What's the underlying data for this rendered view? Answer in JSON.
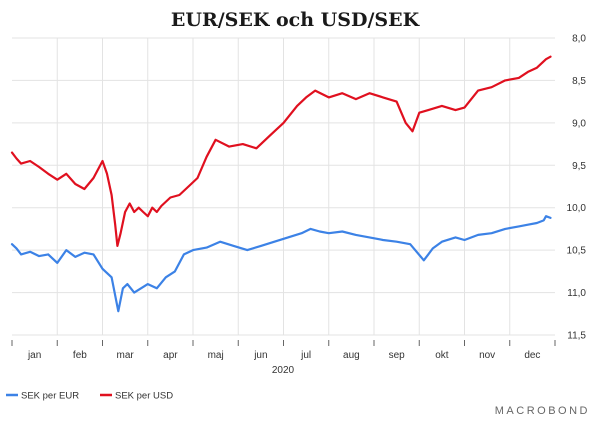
{
  "chart_data": {
    "type": "line",
    "title": "EUR/SEK och USD/SEK",
    "xlabel": "2020",
    "months": [
      "jan",
      "feb",
      "mar",
      "apr",
      "maj",
      "jun",
      "jul",
      "aug",
      "sep",
      "okt",
      "nov",
      "dec"
    ],
    "x_range": [
      0,
      12
    ],
    "ylim": [
      8.0,
      11.5
    ],
    "y_inverted": true,
    "y_axis_side": "right",
    "y_ticks": [
      "8,0",
      "8,5",
      "9,0",
      "9,5",
      "10,0",
      "10,5",
      "11,0",
      "11,5"
    ],
    "grid": true,
    "legend_position": "bottom-left",
    "series": [
      {
        "name": "SEK per EUR",
        "color": "#3c82e6",
        "x": [
          0.0,
          0.1,
          0.2,
          0.4,
          0.6,
          0.8,
          1.0,
          1.2,
          1.4,
          1.6,
          1.8,
          2.0,
          2.2,
          2.35,
          2.45,
          2.55,
          2.7,
          2.85,
          3.0,
          3.2,
          3.4,
          3.6,
          3.8,
          4.0,
          4.3,
          4.6,
          4.9,
          5.2,
          5.5,
          5.8,
          6.1,
          6.4,
          6.6,
          6.8,
          7.0,
          7.3,
          7.6,
          7.9,
          8.2,
          8.5,
          8.8,
          9.1,
          9.2,
          9.3,
          9.5,
          9.8,
          10.0,
          10.3,
          10.6,
          10.9,
          11.2,
          11.4,
          11.6,
          11.75,
          11.8,
          11.9
        ],
        "values": [
          10.43,
          10.48,
          10.55,
          10.52,
          10.57,
          10.55,
          10.65,
          10.5,
          10.58,
          10.53,
          10.55,
          10.72,
          10.82,
          11.22,
          10.95,
          10.9,
          11.0,
          10.95,
          10.9,
          10.95,
          10.82,
          10.75,
          10.55,
          10.5,
          10.47,
          10.4,
          10.45,
          10.5,
          10.45,
          10.4,
          10.35,
          10.3,
          10.25,
          10.28,
          10.3,
          10.28,
          10.32,
          10.35,
          10.38,
          10.4,
          10.43,
          10.62,
          10.55,
          10.48,
          10.4,
          10.35,
          10.38,
          10.32,
          10.3,
          10.25,
          10.22,
          10.2,
          10.18,
          10.15,
          10.1,
          10.12
        ]
      },
      {
        "name": "SEK per USD",
        "color": "#e0101f",
        "x": [
          0.0,
          0.1,
          0.2,
          0.4,
          0.6,
          0.8,
          1.0,
          1.2,
          1.4,
          1.6,
          1.8,
          2.0,
          2.1,
          2.2,
          2.28,
          2.33,
          2.4,
          2.5,
          2.6,
          2.7,
          2.8,
          2.9,
          3.0,
          3.1,
          3.2,
          3.3,
          3.5,
          3.7,
          3.9,
          4.1,
          4.3,
          4.5,
          4.8,
          5.1,
          5.4,
          5.7,
          6.0,
          6.3,
          6.5,
          6.7,
          7.0,
          7.3,
          7.6,
          7.9,
          8.2,
          8.5,
          8.7,
          8.85,
          9.0,
          9.2,
          9.5,
          9.8,
          10.0,
          10.3,
          10.6,
          10.9,
          11.2,
          11.4,
          11.6,
          11.8,
          11.9
        ],
        "values": [
          9.35,
          9.42,
          9.48,
          9.45,
          9.52,
          9.6,
          9.67,
          9.6,
          9.72,
          9.78,
          9.65,
          9.45,
          9.6,
          9.85,
          10.2,
          10.45,
          10.3,
          10.05,
          9.95,
          10.05,
          10.0,
          10.05,
          10.1,
          10.0,
          10.05,
          9.98,
          9.88,
          9.85,
          9.75,
          9.65,
          9.4,
          9.2,
          9.28,
          9.25,
          9.3,
          9.15,
          9.0,
          8.8,
          8.7,
          8.62,
          8.7,
          8.65,
          8.72,
          8.65,
          8.7,
          8.75,
          9.0,
          9.1,
          8.88,
          8.85,
          8.8,
          8.85,
          8.82,
          8.62,
          8.58,
          8.5,
          8.47,
          8.4,
          8.35,
          8.25,
          8.22
        ]
      }
    ],
    "source": "MACROBOND",
    "legend": [
      {
        "label": "SEK per EUR",
        "color": "#3c82e6"
      },
      {
        "label": "SEK per USD",
        "color": "#e0101f"
      }
    ]
  }
}
